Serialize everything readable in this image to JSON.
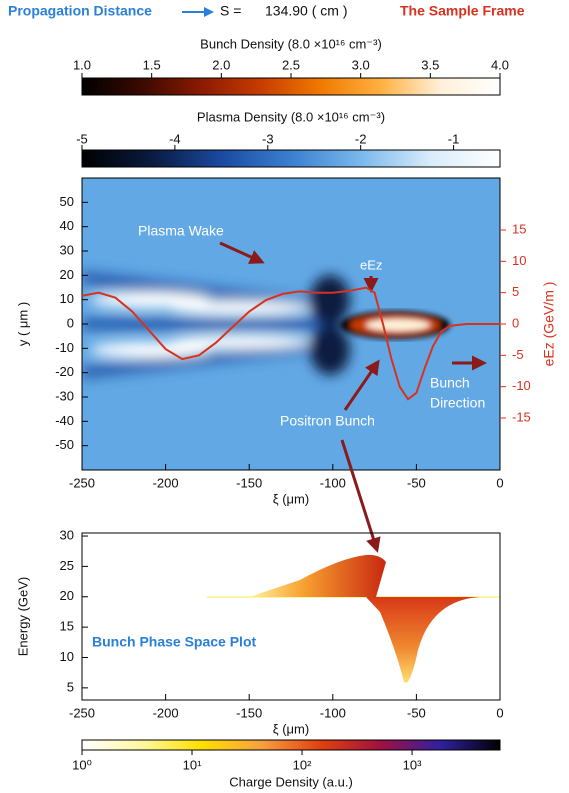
{
  "header": {
    "distance_label": "Propagation Distance",
    "s_label": "S =",
    "s_value": "134.90 ( cm )",
    "frame_label": "The Sample Frame"
  },
  "chart_data": [
    {
      "type": "colorbar",
      "title": "Bunch Density (8.0 ×10¹⁶ cm⁻³)",
      "xlim": [
        1,
        4
      ],
      "xticks": [
        {
          "value": 1,
          "label": "1.0"
        },
        1.5,
        {
          "value": 2,
          "label": "2.0"
        },
        2.5,
        {
          "value": 3,
          "label": "3.0"
        },
        3.5,
        {
          "value": 4,
          "label": "4.0"
        }
      ],
      "colors": [
        "#000000",
        "#3a0a00",
        "#8b1a00",
        "#c83c00",
        "#f07a00",
        "#ffb040",
        "#fff0d8",
        "#ffffff"
      ]
    },
    {
      "type": "colorbar",
      "title": "Plasma Density (8.0 ×10¹⁶ cm⁻³)",
      "xlim": [
        -5,
        -0.5
      ],
      "xticks": [
        -5,
        -4,
        -3,
        -2,
        -1
      ],
      "colors": [
        "#000000",
        "#0a1a40",
        "#1a4aa0",
        "#3a80d0",
        "#7ab8ec",
        "#d8ecfa",
        "#ffffff"
      ]
    },
    {
      "type": "line",
      "xlabel": "ξ (μm)",
      "ylabel": "y ( μm )",
      "y2label": "eEz (GeV/m )",
      "xlim": [
        -250,
        0
      ],
      "xticks": [
        -250,
        -200,
        -150,
        -100,
        -50,
        0
      ],
      "ylim": [
        -60,
        60
      ],
      "yticks": [
        50,
        40,
        30,
        20,
        10,
        0,
        -10,
        -20,
        -30,
        -40,
        -50
      ],
      "y2lim": [
        -23.3,
        23.3
      ],
      "y2ticks": [
        15,
        10,
        5,
        0,
        -5,
        -10,
        -15
      ],
      "x": [
        -250,
        -240,
        -230,
        -220,
        -210,
        -200,
        -190,
        -180,
        -170,
        -160,
        -150,
        -140,
        -130,
        -120,
        -110,
        -100,
        -90,
        -80,
        -75,
        -70,
        -65,
        -60,
        -55,
        -50,
        -45,
        -40,
        -35,
        -30,
        -20,
        -10,
        0
      ],
      "series": [
        {
          "color": "#d8321e",
          "axis": "y2",
          "values": [
            4.5,
            5.0,
            4.2,
            2.0,
            -1.0,
            -4.0,
            -5.6,
            -5.0,
            -3.0,
            -0.5,
            2.0,
            3.8,
            4.8,
            5.2,
            5.0,
            5.0,
            5.3,
            5.8,
            5.0,
            0.0,
            -5.5,
            -10,
            -12,
            -11,
            -7,
            -3.5,
            -1.2,
            -0.3,
            0,
            0,
            0
          ]
        }
      ],
      "annotations": [
        "Plasma Wake",
        "eEz",
        "Positron Bunch",
        "Bunch",
        "Direction"
      ]
    },
    {
      "type": "phase-space",
      "xlabel": "ξ (μm)",
      "ylabel": "Energy (GeV)",
      "xlim": [
        -250,
        0
      ],
      "xticks": [
        -250,
        -200,
        -150,
        -100,
        -50,
        0
      ],
      "ylim": [
        3,
        30.5
      ],
      "yticks": [
        30,
        25,
        20,
        15,
        10,
        5
      ],
      "annotation": "Bunch Phase Space Plot"
    },
    {
      "type": "colorbar",
      "title": "Charge Density (a.u.)",
      "log_scale": true,
      "xlim": [
        1,
        6300
      ],
      "xticks": [
        {
          "value": 1,
          "label": "10⁰"
        },
        {
          "value": 10,
          "label": "10¹"
        },
        {
          "value": 100,
          "label": "10²"
        },
        {
          "value": 1000,
          "label": "10³"
        }
      ],
      "colors": [
        "#ffffff",
        "#fff8a0",
        "#ffe000",
        "#f8a040",
        "#e04010",
        "#a01040",
        "#3020a0",
        "#000000"
      ]
    }
  ]
}
